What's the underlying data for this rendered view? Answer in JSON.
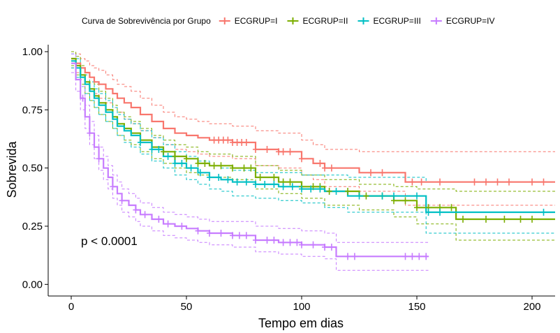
{
  "chart_data": {
    "type": "line",
    "subtype": "kaplan-meier",
    "xlabel": "Tempo em dias",
    "ylabel": "Sobrevida",
    "xlim": [
      -10,
      210
    ],
    "ylim": [
      -0.05,
      1.03
    ],
    "x_ticks": [
      0,
      50,
      100,
      150,
      200
    ],
    "y_ticks": [
      0.0,
      0.25,
      0.5,
      0.75,
      1.0
    ],
    "y_tick_labels": [
      "0.00",
      "0.25",
      "0.50",
      "0.75",
      "1.00"
    ],
    "grid": false,
    "legend": {
      "position": "top",
      "title": "Curva de Sobrevivência por Grupo"
    },
    "annotation": "p < 0.0001",
    "series": [
      {
        "name": "ECGRUP=I",
        "color": "#F8766D",
        "x": [
          0,
          2,
          4,
          6,
          8,
          10,
          12,
          15,
          18,
          20,
          23,
          26,
          30,
          35,
          40,
          45,
          50,
          55,
          60,
          70,
          80,
          90,
          100,
          105,
          110,
          125,
          145,
          210
        ],
        "y": [
          0.97,
          0.95,
          0.93,
          0.91,
          0.89,
          0.87,
          0.86,
          0.84,
          0.82,
          0.8,
          0.78,
          0.76,
          0.73,
          0.7,
          0.67,
          0.65,
          0.64,
          0.63,
          0.62,
          0.61,
          0.58,
          0.57,
          0.54,
          0.52,
          0.5,
          0.48,
          0.44,
          0.44
        ],
        "lower": [
          0.93,
          0.91,
          0.88,
          0.86,
          0.84,
          0.82,
          0.8,
          0.78,
          0.76,
          0.74,
          0.71,
          0.69,
          0.66,
          0.63,
          0.6,
          0.58,
          0.57,
          0.56,
          0.55,
          0.54,
          0.51,
          0.5,
          0.47,
          0.45,
          0.42,
          0.4,
          0.34,
          0.34
        ],
        "upper": [
          1.0,
          0.99,
          0.97,
          0.96,
          0.94,
          0.93,
          0.92,
          0.9,
          0.88,
          0.86,
          0.85,
          0.83,
          0.8,
          0.77,
          0.74,
          0.72,
          0.71,
          0.7,
          0.69,
          0.68,
          0.66,
          0.65,
          0.62,
          0.6,
          0.58,
          0.57,
          0.57,
          0.57
        ],
        "censors_x": [
          62,
          64,
          66,
          68,
          70,
          72,
          74,
          76,
          80,
          85,
          90,
          92,
          95,
          100,
          108,
          110,
          113,
          130,
          135,
          148,
          152,
          160,
          175,
          180,
          185,
          190,
          200,
          205
        ]
      },
      {
        "name": "ECGRUP=II",
        "color": "#7CAE00",
        "x": [
          0,
          2,
          4,
          6,
          8,
          10,
          12,
          15,
          18,
          20,
          23,
          26,
          30,
          35,
          40,
          45,
          50,
          55,
          60,
          70,
          80,
          90,
          100,
          110,
          125,
          140,
          150,
          167,
          210
        ],
        "y": [
          0.97,
          0.94,
          0.9,
          0.87,
          0.84,
          0.81,
          0.78,
          0.75,
          0.72,
          0.69,
          0.67,
          0.65,
          0.62,
          0.59,
          0.57,
          0.55,
          0.54,
          0.52,
          0.51,
          0.5,
          0.46,
          0.44,
          0.42,
          0.4,
          0.38,
          0.36,
          0.33,
          0.28,
          0.28
        ],
        "lower": [
          0.94,
          0.9,
          0.86,
          0.82,
          0.79,
          0.76,
          0.73,
          0.7,
          0.67,
          0.64,
          0.62,
          0.6,
          0.57,
          0.54,
          0.52,
          0.5,
          0.48,
          0.47,
          0.46,
          0.45,
          0.41,
          0.39,
          0.37,
          0.34,
          0.32,
          0.29,
          0.26,
          0.19,
          0.19
        ],
        "upper": [
          1.0,
          0.98,
          0.94,
          0.91,
          0.89,
          0.86,
          0.83,
          0.8,
          0.77,
          0.74,
          0.72,
          0.7,
          0.67,
          0.64,
          0.62,
          0.6,
          0.59,
          0.57,
          0.56,
          0.55,
          0.51,
          0.49,
          0.47,
          0.45,
          0.43,
          0.42,
          0.41,
          0.4,
          0.4
        ],
        "censors_x": [
          40,
          45,
          50,
          55,
          58,
          62,
          65,
          70,
          75,
          78,
          82,
          88,
          92,
          95,
          100,
          105,
          108,
          112,
          120,
          128,
          135,
          140,
          145,
          150,
          155,
          160,
          165,
          170,
          180,
          188,
          195,
          200
        ]
      },
      {
        "name": "ECGRUP=III",
        "color": "#00BFC4",
        "x": [
          0,
          2,
          4,
          6,
          8,
          10,
          12,
          15,
          18,
          20,
          23,
          26,
          30,
          35,
          40,
          45,
          50,
          55,
          60,
          65,
          70,
          80,
          90,
          100,
          110,
          120,
          154,
          210
        ],
        "y": [
          0.96,
          0.93,
          0.89,
          0.86,
          0.83,
          0.8,
          0.77,
          0.74,
          0.71,
          0.68,
          0.66,
          0.64,
          0.61,
          0.58,
          0.55,
          0.52,
          0.5,
          0.48,
          0.46,
          0.45,
          0.44,
          0.43,
          0.42,
          0.41,
          0.4,
          0.38,
          0.31,
          0.31
        ],
        "lower": [
          0.93,
          0.89,
          0.85,
          0.82,
          0.79,
          0.76,
          0.73,
          0.7,
          0.67,
          0.64,
          0.61,
          0.59,
          0.56,
          0.53,
          0.5,
          0.47,
          0.45,
          0.43,
          0.41,
          0.4,
          0.38,
          0.37,
          0.36,
          0.35,
          0.33,
          0.31,
          0.22,
          0.22
        ],
        "upper": [
          0.99,
          0.97,
          0.93,
          0.9,
          0.87,
          0.84,
          0.82,
          0.79,
          0.76,
          0.73,
          0.71,
          0.69,
          0.66,
          0.63,
          0.6,
          0.57,
          0.55,
          0.53,
          0.51,
          0.5,
          0.49,
          0.48,
          0.48,
          0.47,
          0.47,
          0.46,
          0.44,
          0.44
        ],
        "censors_x": [
          30,
          35,
          38,
          42,
          45,
          48,
          52,
          56,
          60,
          64,
          68,
          72,
          76,
          80,
          84,
          88,
          92,
          96,
          100,
          104,
          108,
          115,
          125,
          135,
          140,
          150,
          155,
          160,
          205
        ]
      },
      {
        "name": "ECGRUP=IV",
        "color": "#C77CFF",
        "x": [
          0,
          2,
          4,
          6,
          8,
          10,
          12,
          14,
          16,
          18,
          20,
          22,
          25,
          28,
          30,
          35,
          40,
          45,
          50,
          55,
          60,
          70,
          80,
          90,
          100,
          110,
          115,
          155
        ],
        "y": [
          0.95,
          0.88,
          0.8,
          0.72,
          0.65,
          0.59,
          0.54,
          0.5,
          0.46,
          0.42,
          0.39,
          0.36,
          0.34,
          0.32,
          0.3,
          0.28,
          0.26,
          0.25,
          0.24,
          0.23,
          0.22,
          0.21,
          0.19,
          0.18,
          0.17,
          0.16,
          0.12,
          0.12
        ],
        "lower": [
          0.91,
          0.83,
          0.75,
          0.67,
          0.6,
          0.54,
          0.49,
          0.45,
          0.41,
          0.37,
          0.34,
          0.31,
          0.29,
          0.27,
          0.25,
          0.23,
          0.21,
          0.2,
          0.19,
          0.18,
          0.17,
          0.16,
          0.14,
          0.13,
          0.12,
          0.11,
          0.06,
          0.06
        ],
        "upper": [
          0.99,
          0.93,
          0.85,
          0.77,
          0.7,
          0.64,
          0.59,
          0.55,
          0.51,
          0.47,
          0.44,
          0.41,
          0.39,
          0.37,
          0.35,
          0.33,
          0.31,
          0.3,
          0.29,
          0.28,
          0.27,
          0.27,
          0.25,
          0.24,
          0.23,
          0.22,
          0.18,
          0.18
        ],
        "censors_x": [
          5,
          8,
          12,
          18,
          22,
          28,
          32,
          38,
          42,
          48,
          55,
          60,
          65,
          70,
          73,
          76,
          80,
          85,
          88,
          92,
          95,
          98,
          100,
          105,
          110,
          113,
          120,
          123,
          145,
          148,
          151,
          154
        ]
      }
    ]
  }
}
